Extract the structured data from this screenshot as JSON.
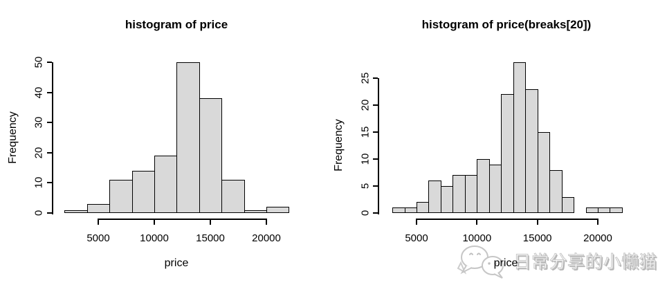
{
  "chart_data": [
    {
      "type": "bar",
      "title": "histogram of price",
      "xlabel": "price",
      "ylabel": "Frequency",
      "bin_start": 2000,
      "bin_width": 2000,
      "values": [
        1,
        3,
        11,
        14,
        19,
        50,
        38,
        11,
        1,
        2
      ],
      "x_ticks": [
        5000,
        10000,
        15000,
        20000
      ],
      "y_ticks": [
        0,
        10,
        20,
        30,
        40,
        50
      ],
      "xlim": [
        2000,
        22000
      ],
      "ylim": [
        0,
        50
      ],
      "grid": false,
      "legend": "none",
      "bar_fill": "#d9d9d9",
      "bar_stroke": "#000000"
    },
    {
      "type": "bar",
      "title": "histogram of price(breaks[20])",
      "xlabel": "price",
      "ylabel": "Frequency",
      "bin_start": 3000,
      "bin_width": 1000,
      "values": [
        1,
        1,
        2,
        6,
        5,
        7,
        7,
        10,
        9,
        22,
        28,
        23,
        15,
        8,
        3,
        0,
        1,
        1,
        1
      ],
      "x_ticks": [
        5000,
        10000,
        15000,
        20000
      ],
      "y_ticks": [
        0,
        5,
        10,
        15,
        20,
        25
      ],
      "xlim": [
        3000,
        22000
      ],
      "ylim": [
        0,
        28
      ],
      "grid": false,
      "legend": "none",
      "bar_fill": "#d9d9d9",
      "bar_stroke": "#000000"
    }
  ],
  "watermark": {
    "text": "日常分享的小懒猫",
    "logo": "wechat-logo"
  },
  "colors": {
    "background": "#ffffff",
    "bar_fill": "#d9d9d9",
    "bar_stroke": "#000000",
    "watermark_gray": "#c9c9c9"
  }
}
